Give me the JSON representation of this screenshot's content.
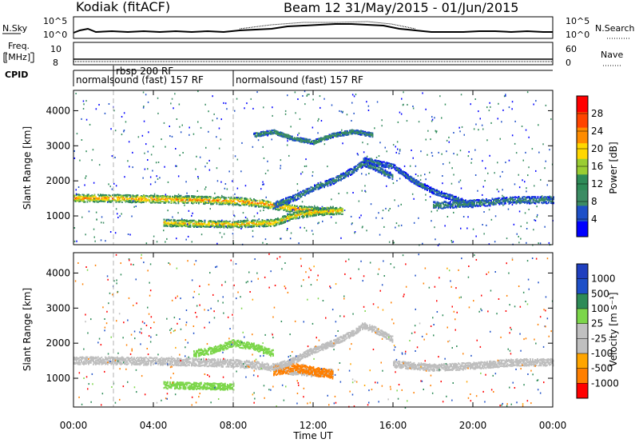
{
  "header": {
    "station": "Kodiak (fitACF)",
    "beam_info": "Beam 12 31/May/2015 - 01/Jun/2015"
  },
  "noise_panel": {
    "left_label": "N.Sky",
    "left_ticks": [
      "10^5",
      "10^0"
    ],
    "right_label": "N.Search",
    "right_ticks": [
      "10^5",
      "10^0"
    ]
  },
  "freq_panel": {
    "left_label_1": "Freq.",
    "left_label_2": "[MHz]",
    "left_ticks": [
      "10",
      "8"
    ],
    "right_label": "Nave",
    "right_ticks": [
      "60",
      "0"
    ]
  },
  "cpid": {
    "label": "CPID",
    "modes": [
      {
        "start_hour": 0.0,
        "text": "normalsound (fast) 157 RF"
      },
      {
        "start_hour": 2.0,
        "text": "rbsp 200 RF"
      },
      {
        "start_hour": 8.0,
        "text": "normalsound (fast) 157 RF"
      }
    ]
  },
  "colors": {
    "power_scale": [
      "#0000ff",
      "#1e50c8",
      "#3c8c64",
      "#2e8b57",
      "#9acd32",
      "#ffd700",
      "#ff8c00",
      "#ff4500",
      "#ff0000"
    ],
    "velocity_scale": [
      "#ff0000",
      "#ff7f00",
      "#ffa500",
      "#c0c0c0",
      "#c0c0c0",
      "#7cd64a",
      "#2e8b57",
      "#1e50c8",
      "#1f3fbf"
    ],
    "ground_scatter": "#bebebe"
  },
  "chart_data": [
    {
      "type": "heatmap",
      "panel": "power",
      "ylabel": "Slant Range [km]",
      "xlabel": "Time UT",
      "x_ticks": [
        "00:00",
        "04:00",
        "08:00",
        "12:00",
        "16:00",
        "20:00",
        "00:00"
      ],
      "x_range_hours": [
        0,
        24
      ],
      "y_ticks": [
        1000,
        2000,
        3000,
        4000
      ],
      "ylim": [
        180,
        4580
      ],
      "colorbar_label": "Power [dB]",
      "colorbar_ticks": [
        "4",
        "8",
        "12",
        "16",
        "20",
        "24",
        "28"
      ],
      "colorbar_range": [
        0,
        32
      ],
      "features": [
        {
          "name": "main-band",
          "t": [
            0,
            2,
            4,
            6,
            8,
            9,
            10,
            11,
            12,
            13
          ],
          "r": [
            1500,
            1500,
            1480,
            1460,
            1420,
            1380,
            1300,
            1200,
            1150,
            1150
          ],
          "width_km": 220,
          "value_db": 24
        },
        {
          "name": "lower-band",
          "t": [
            4.5,
            6,
            8,
            10,
            11,
            12,
            13.5
          ],
          "r": [
            800,
            780,
            760,
            800,
            1000,
            1100,
            1150
          ],
          "width_km": 200,
          "value_db": 22
        },
        {
          "name": "rising-arc",
          "t": [
            10,
            11,
            12,
            13,
            14,
            14.5,
            15,
            16
          ],
          "r": [
            1300,
            1500,
            1800,
            2000,
            2300,
            2500,
            2400,
            2100
          ],
          "width_km": 180,
          "value_db": 10
        },
        {
          "name": "descending-streaks",
          "t": [
            14.5,
            16,
            17,
            18,
            19,
            20
          ],
          "r": [
            2600,
            2400,
            2000,
            1700,
            1500,
            1300
          ],
          "width_km": 150,
          "value_db": 8
        },
        {
          "name": "late-band",
          "t": [
            18,
            20,
            22,
            24
          ],
          "r": [
            1300,
            1350,
            1450,
            1450
          ],
          "width_km": 200,
          "value_db": 10
        },
        {
          "name": "upper-scatter",
          "t": [
            9,
            10,
            11,
            12,
            13,
            14,
            15
          ],
          "r": [
            3300,
            3400,
            3200,
            3100,
            3300,
            3400,
            3300
          ],
          "width_km": 120,
          "value_db": 12
        }
      ]
    },
    {
      "type": "heatmap",
      "panel": "velocity",
      "ylabel": "Slant Range [km]",
      "xlabel": "Time UT",
      "x_ticks": [
        "00:00",
        "04:00",
        "08:00",
        "12:00",
        "16:00",
        "20:00",
        "00:00"
      ],
      "x_range_hours": [
        0,
        24
      ],
      "y_ticks": [
        1000,
        2000,
        3000,
        4000
      ],
      "ylim": [
        180,
        4580
      ],
      "colorbar_label": "Velocity [m s⁻¹]",
      "colorbar_ticks": [
        "1000",
        "500",
        "100",
        "25",
        "-25",
        "-100",
        "-500",
        "-1000"
      ],
      "features": [
        {
          "name": "main-band-ground",
          "t": [
            0,
            2,
            4,
            6,
            8,
            9,
            10,
            11,
            12,
            13
          ],
          "r": [
            1500,
            1500,
            1480,
            1460,
            1420,
            1380,
            1300,
            1200,
            1150,
            1150
          ],
          "width_km": 220,
          "value_ms": 0
        },
        {
          "name": "lower-band-green",
          "t": [
            4.5,
            6,
            8
          ],
          "r": [
            800,
            780,
            760
          ],
          "width_km": 200,
          "value_ms": 75
        },
        {
          "name": "orange-patch",
          "t": [
            10,
            11,
            12,
            13
          ],
          "r": [
            1200,
            1300,
            1200,
            1100
          ],
          "width_km": 250,
          "value_ms": -200
        },
        {
          "name": "rising-arc-ground",
          "t": [
            10,
            11,
            12,
            13,
            14,
            14.5,
            15,
            16
          ],
          "r": [
            1300,
            1500,
            1800,
            2000,
            2300,
            2500,
            2400,
            2100
          ],
          "width_km": 180,
          "value_ms": 0
        },
        {
          "name": "late-band-ground",
          "t": [
            16,
            18,
            20,
            22,
            24
          ],
          "r": [
            1400,
            1300,
            1350,
            1450,
            1450
          ],
          "width_km": 200,
          "value_ms": 0
        },
        {
          "name": "green-arc",
          "t": [
            6,
            7,
            8,
            9,
            10
          ],
          "r": [
            1700,
            1800,
            2000,
            1900,
            1700
          ],
          "width_km": 200,
          "value_ms": 80
        }
      ]
    }
  ]
}
